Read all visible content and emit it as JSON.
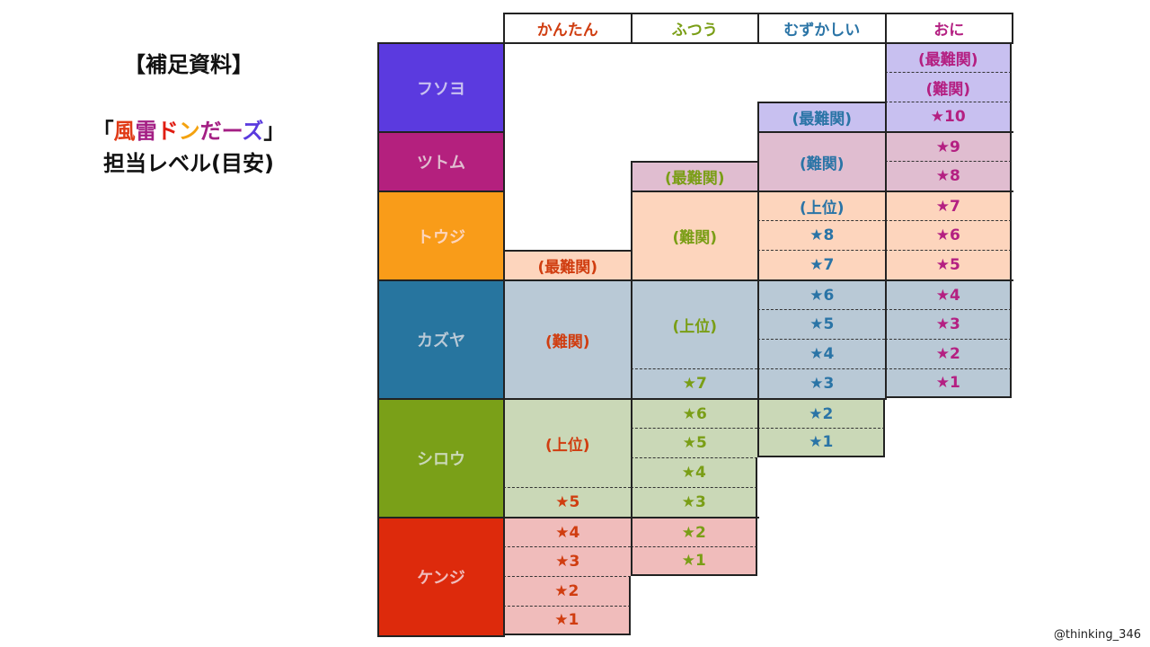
{
  "side": {
    "heading": "【補足資料】",
    "title_open": "「",
    "title_chars": [
      {
        "c": "風",
        "color": "#e03a16"
      },
      {
        "c": "雷",
        "color": "#a41f84"
      },
      {
        "c": "ド",
        "color": "#e01d12"
      },
      {
        "c": "ン",
        "color": "#f4a20f"
      },
      {
        "c": "だ",
        "color": "#a41f84"
      },
      {
        "c": "ー",
        "color": "#a41f84"
      },
      {
        "c": "ズ",
        "color": "#5a3ade"
      }
    ],
    "title_close": "」",
    "subtitle": "担当レベル(目安)"
  },
  "credit": "@thinking_346",
  "columns": [
    {
      "label": "かんたん",
      "color": "#d03d10"
    },
    {
      "label": "ふつう",
      "color": "#7a9e16"
    },
    {
      "label": "むずかしい",
      "color": "#2a74a6"
    },
    {
      "label": "おに",
      "color": "#b42082"
    }
  ],
  "members": [
    {
      "name": "フソヨ",
      "color": "#5b3adf",
      "text_color": "#c8c0f0",
      "r0": 0,
      "r1": 3
    },
    {
      "name": "ツトム",
      "color": "#b4207e",
      "text_color": "#e0bdd0",
      "r0": 3,
      "r1": 5
    },
    {
      "name": "トウジ",
      "color": "#f99c19",
      "text_color": "#fdd5bd",
      "r0": 5,
      "r1": 8
    },
    {
      "name": "カズヤ",
      "color": "#27759f",
      "text_color": "#b9c9d6",
      "r0": 8,
      "r1": 12
    },
    {
      "name": "シロウ",
      "color": "#7aa018",
      "text_color": "#cad8b7",
      "r0": 12,
      "r1": 16
    },
    {
      "name": "ケンジ",
      "color": "#dd2a0c",
      "text_color": "#f0bcbb",
      "r0": 16,
      "r1": 20
    }
  ],
  "levels": [
    {
      "col": 0,
      "r0": 7,
      "r1": 8,
      "label": "(最難関)",
      "m": 2
    },
    {
      "col": 0,
      "r0": 8,
      "r1": 12,
      "label": "(難関)",
      "m": 3
    },
    {
      "col": 0,
      "r0": 12,
      "r1": 15,
      "label": "(上位)",
      "m": 4
    },
    {
      "col": 0,
      "r0": 15,
      "r1": 16,
      "label": "★5",
      "m": 4
    },
    {
      "col": 0,
      "r0": 16,
      "r1": 17,
      "label": "★4",
      "m": 5
    },
    {
      "col": 0,
      "r0": 17,
      "r1": 18,
      "label": "★3",
      "m": 5
    },
    {
      "col": 0,
      "r0": 18,
      "r1": 19,
      "label": "★2",
      "m": 5
    },
    {
      "col": 0,
      "r0": 19,
      "r1": 20,
      "label": "★1",
      "m": 5
    },
    {
      "col": 1,
      "r0": 4,
      "r1": 5,
      "label": "(最難関)",
      "m": 1
    },
    {
      "col": 1,
      "r0": 5,
      "r1": 8,
      "label": "(難関)",
      "m": 2
    },
    {
      "col": 1,
      "r0": 8,
      "r1": 11,
      "label": "(上位)",
      "m": 3
    },
    {
      "col": 1,
      "r0": 11,
      "r1": 12,
      "label": "★7",
      "m": 3
    },
    {
      "col": 1,
      "r0": 12,
      "r1": 13,
      "label": "★6",
      "m": 4
    },
    {
      "col": 1,
      "r0": 13,
      "r1": 14,
      "label": "★5",
      "m": 4
    },
    {
      "col": 1,
      "r0": 14,
      "r1": 15,
      "label": "★4",
      "m": 4
    },
    {
      "col": 1,
      "r0": 15,
      "r1": 16,
      "label": "★3",
      "m": 4
    },
    {
      "col": 1,
      "r0": 16,
      "r1": 17,
      "label": "★2",
      "m": 5
    },
    {
      "col": 1,
      "r0": 17,
      "r1": 18,
      "label": "★1",
      "m": 5
    },
    {
      "col": 2,
      "r0": 2,
      "r1": 3,
      "label": "(最難関)",
      "m": 0
    },
    {
      "col": 2,
      "r0": 3,
      "r1": 5,
      "label": "(難関)",
      "m": 1
    },
    {
      "col": 2,
      "r0": 5,
      "r1": 6,
      "label": "(上位)",
      "m": 2
    },
    {
      "col": 2,
      "r0": 6,
      "r1": 7,
      "label": "★8",
      "m": 2
    },
    {
      "col": 2,
      "r0": 7,
      "r1": 8,
      "label": "★7",
      "m": 2
    },
    {
      "col": 2,
      "r0": 8,
      "r1": 9,
      "label": "★6",
      "m": 3
    },
    {
      "col": 2,
      "r0": 9,
      "r1": 10,
      "label": "★5",
      "m": 3
    },
    {
      "col": 2,
      "r0": 10,
      "r1": 11,
      "label": "★4",
      "m": 3
    },
    {
      "col": 2,
      "r0": 11,
      "r1": 12,
      "label": "★3",
      "m": 3
    },
    {
      "col": 2,
      "r0": 12,
      "r1": 13,
      "label": "★2",
      "m": 4
    },
    {
      "col": 2,
      "r0": 13,
      "r1": 14,
      "label": "★1",
      "m": 4
    },
    {
      "col": 3,
      "r0": 0,
      "r1": 1,
      "label": "(最難関)",
      "m": 0
    },
    {
      "col": 3,
      "r0": 1,
      "r1": 2,
      "label": "(難関)",
      "m": 0
    },
    {
      "col": 3,
      "r0": 2,
      "r1": 3,
      "label": "★10",
      "m": 0
    },
    {
      "col": 3,
      "r0": 3,
      "r1": 4,
      "label": "★9",
      "m": 1
    },
    {
      "col": 3,
      "r0": 4,
      "r1": 5,
      "label": "★8",
      "m": 1
    },
    {
      "col": 3,
      "r0": 5,
      "r1": 6,
      "label": "★7",
      "m": 2
    },
    {
      "col": 3,
      "r0": 6,
      "r1": 7,
      "label": "★6",
      "m": 2
    },
    {
      "col": 3,
      "r0": 7,
      "r1": 8,
      "label": "★5",
      "m": 2
    },
    {
      "col": 3,
      "r0": 8,
      "r1": 9,
      "label": "★4",
      "m": 3
    },
    {
      "col": 3,
      "r0": 9,
      "r1": 10,
      "label": "★3",
      "m": 3
    },
    {
      "col": 3,
      "r0": 10,
      "r1": 11,
      "label": "★2",
      "m": 3
    },
    {
      "col": 3,
      "r0": 11,
      "r1": 12,
      "label": "★1",
      "m": 3
    }
  ]
}
